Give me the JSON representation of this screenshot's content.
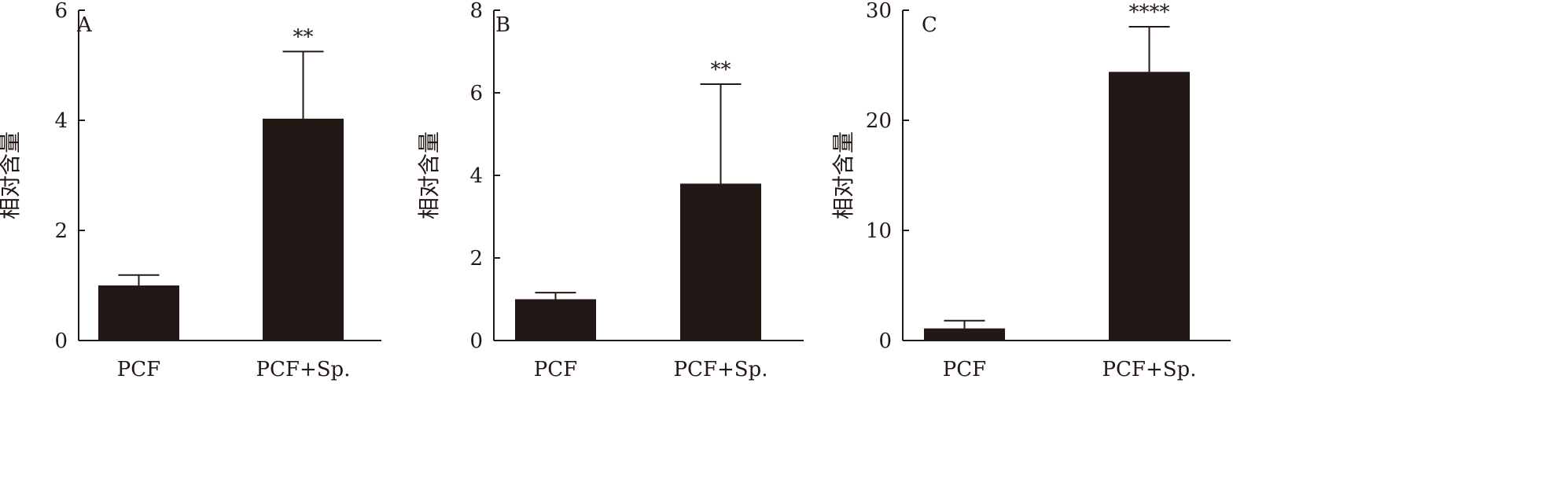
{
  "chart_data": [
    {
      "type": "bar",
      "panel_label": "A",
      "ylabel": "相对含量",
      "categories": [
        "PCF",
        "PCF+Sp."
      ],
      "values": [
        1.0,
        4.03
      ],
      "error": [
        0.19,
        1.22
      ],
      "significance": [
        "",
        "**"
      ],
      "ylim": [
        0,
        6
      ],
      "yticks": [
        "0",
        "2",
        "4",
        "6"
      ],
      "ytick_values": [
        0,
        2,
        4,
        6
      ],
      "grid": false
    },
    {
      "type": "bar",
      "panel_label": "B",
      "ylabel": "相对含量",
      "categories": [
        "PCF",
        "PCF+Sp."
      ],
      "values": [
        1.0,
        3.8
      ],
      "error": [
        0.16,
        2.41
      ],
      "significance": [
        "",
        "**"
      ],
      "ylim": [
        0,
        8
      ],
      "yticks": [
        "0",
        "2",
        "4",
        "6",
        "8"
      ],
      "ytick_values": [
        0,
        2,
        4,
        6,
        8
      ],
      "grid": false
    },
    {
      "type": "bar",
      "panel_label": "C",
      "ylabel": "相对含量",
      "categories": [
        "PCF",
        "PCF+Sp."
      ],
      "values": [
        1.1,
        24.4
      ],
      "error": [
        0.7,
        4.1
      ],
      "significance": [
        "",
        "****"
      ],
      "ylim": [
        0,
        30
      ],
      "yticks": [
        "0",
        "10",
        "20",
        "30"
      ],
      "ytick_values": [
        0,
        10,
        20,
        30
      ],
      "grid": false
    }
  ],
  "colors": {
    "bar": "#231815",
    "axis": "#231815"
  }
}
